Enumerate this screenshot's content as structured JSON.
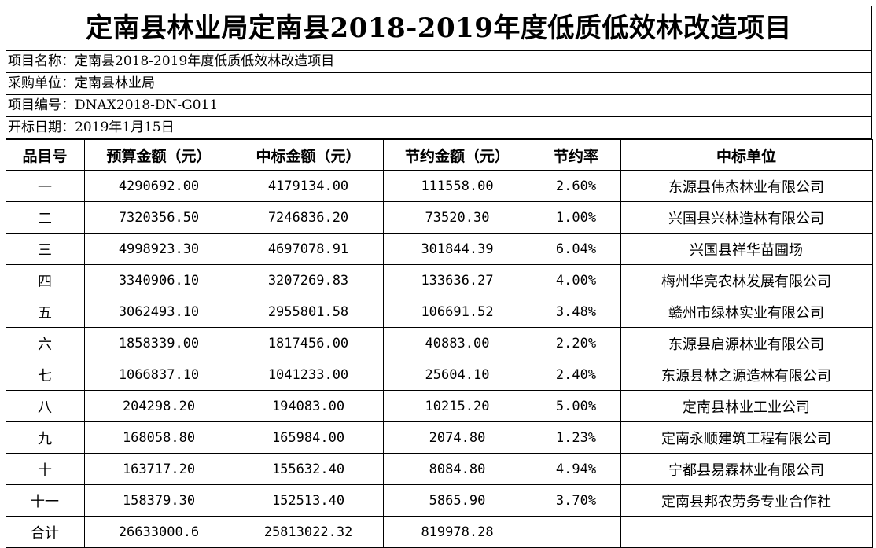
{
  "title": "定南县林业局定南县2018-2019年度低质低效林改造项目",
  "info": {
    "project_name": {
      "label": "项目名称：",
      "value": "定南县2018-2019年度低质低效林改造项目"
    },
    "purchaser": {
      "label": "采购单位：",
      "value": "定南县林业局"
    },
    "project_no": {
      "label": "项目编号：",
      "value": "DNAX2018-DN-G011"
    },
    "open_date": {
      "label": "开标日期：",
      "value": "2019年1月15日"
    }
  },
  "table": {
    "headers": [
      "品目号",
      "预算金额（元）",
      "中标金额（元）",
      "节约金额（元）",
      "节约率",
      "中标单位"
    ],
    "rows": [
      {
        "item": "一",
        "budget": "4290692.00",
        "award": "4179134.00",
        "saving": "111558.00",
        "rate": "2.60%",
        "winner": "东源县伟杰林业有限公司"
      },
      {
        "item": "二",
        "budget": "7320356.50",
        "award": "7246836.20",
        "saving": "73520.30",
        "rate": "1.00%",
        "winner": "兴国县兴林造林有限公司"
      },
      {
        "item": "三",
        "budget": "4998923.30",
        "award": "4697078.91",
        "saving": "301844.39",
        "rate": "6.04%",
        "winner": "兴国县祥华苗圃场"
      },
      {
        "item": "四",
        "budget": "3340906.10",
        "award": "3207269.83",
        "saving": "133636.27",
        "rate": "4.00%",
        "winner": "梅州华亮农林发展有限公司"
      },
      {
        "item": "五",
        "budget": "3062493.10",
        "award": "2955801.58",
        "saving": "106691.52",
        "rate": "3.48%",
        "winner": "赣州市绿林实业有限公司"
      },
      {
        "item": "六",
        "budget": "1858339.00",
        "award": "1817456.00",
        "saving": "40883.00",
        "rate": "2.20%",
        "winner": "东源县启源林业有限公司"
      },
      {
        "item": "七",
        "budget": "1066837.10",
        "award": "1041233.00",
        "saving": "25604.10",
        "rate": "2.40%",
        "winner": "东源县林之源造林有限公司"
      },
      {
        "item": "八",
        "budget": "204298.20",
        "award": "194083.00",
        "saving": "10215.20",
        "rate": "5.00%",
        "winner": "定南县林业工业公司"
      },
      {
        "item": "九",
        "budget": "168058.80",
        "award": "165984.00",
        "saving": "2074.80",
        "rate": "1.23%",
        "winner": "定南永顺建筑工程有限公司"
      },
      {
        "item": "十",
        "budget": "163717.20",
        "award": "155632.40",
        "saving": "8084.80",
        "rate": "4.94%",
        "winner": "宁都县易霖林业有限公司"
      },
      {
        "item": "十一",
        "budget": "158379.30",
        "award": "152513.40",
        "saving": "5865.90",
        "rate": "3.70%",
        "winner": "定南县邦农劳务专业合作社"
      }
    ],
    "total": {
      "item": "合计",
      "budget": "26633000.6",
      "award": "25813022.32",
      "saving": "819978.28",
      "rate": "",
      "winner": ""
    }
  }
}
